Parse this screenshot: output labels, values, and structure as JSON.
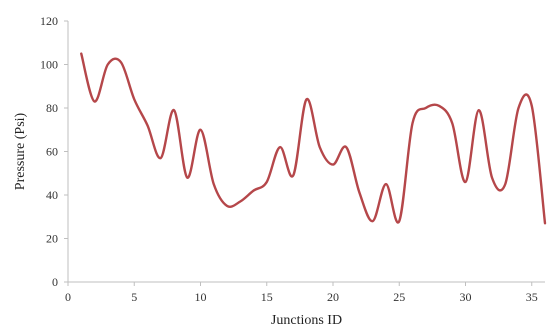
{
  "chart_data": {
    "type": "line",
    "title": "",
    "xlabel": "Junctions ID",
    "ylabel": "Pressure (Psi)",
    "xlim": [
      0,
      36
    ],
    "ylim": [
      0,
      120
    ],
    "x_ticks": [
      0,
      5,
      10,
      15,
      20,
      25,
      30,
      35
    ],
    "y_ticks": [
      0,
      20,
      40,
      60,
      80,
      100,
      120
    ],
    "grid": false,
    "legend": "none",
    "series": [
      {
        "color": "#b5474a",
        "x": [
          1,
          2,
          3,
          4,
          5,
          6,
          7,
          8,
          9,
          10,
          11,
          12,
          13,
          14,
          15,
          16,
          17,
          18,
          19,
          20,
          21,
          22,
          23,
          24,
          25,
          26,
          27,
          28,
          29,
          30,
          31,
          32,
          33,
          34,
          35,
          36
        ],
        "y": [
          105,
          83,
          100,
          101,
          84,
          72,
          57,
          79,
          48,
          70,
          45,
          35,
          37,
          42,
          46,
          62,
          49,
          84,
          62,
          54,
          62,
          41,
          28,
          45,
          28,
          73,
          80,
          81,
          73,
          46,
          79,
          48,
          45,
          80,
          81,
          27
        ]
      }
    ]
  }
}
